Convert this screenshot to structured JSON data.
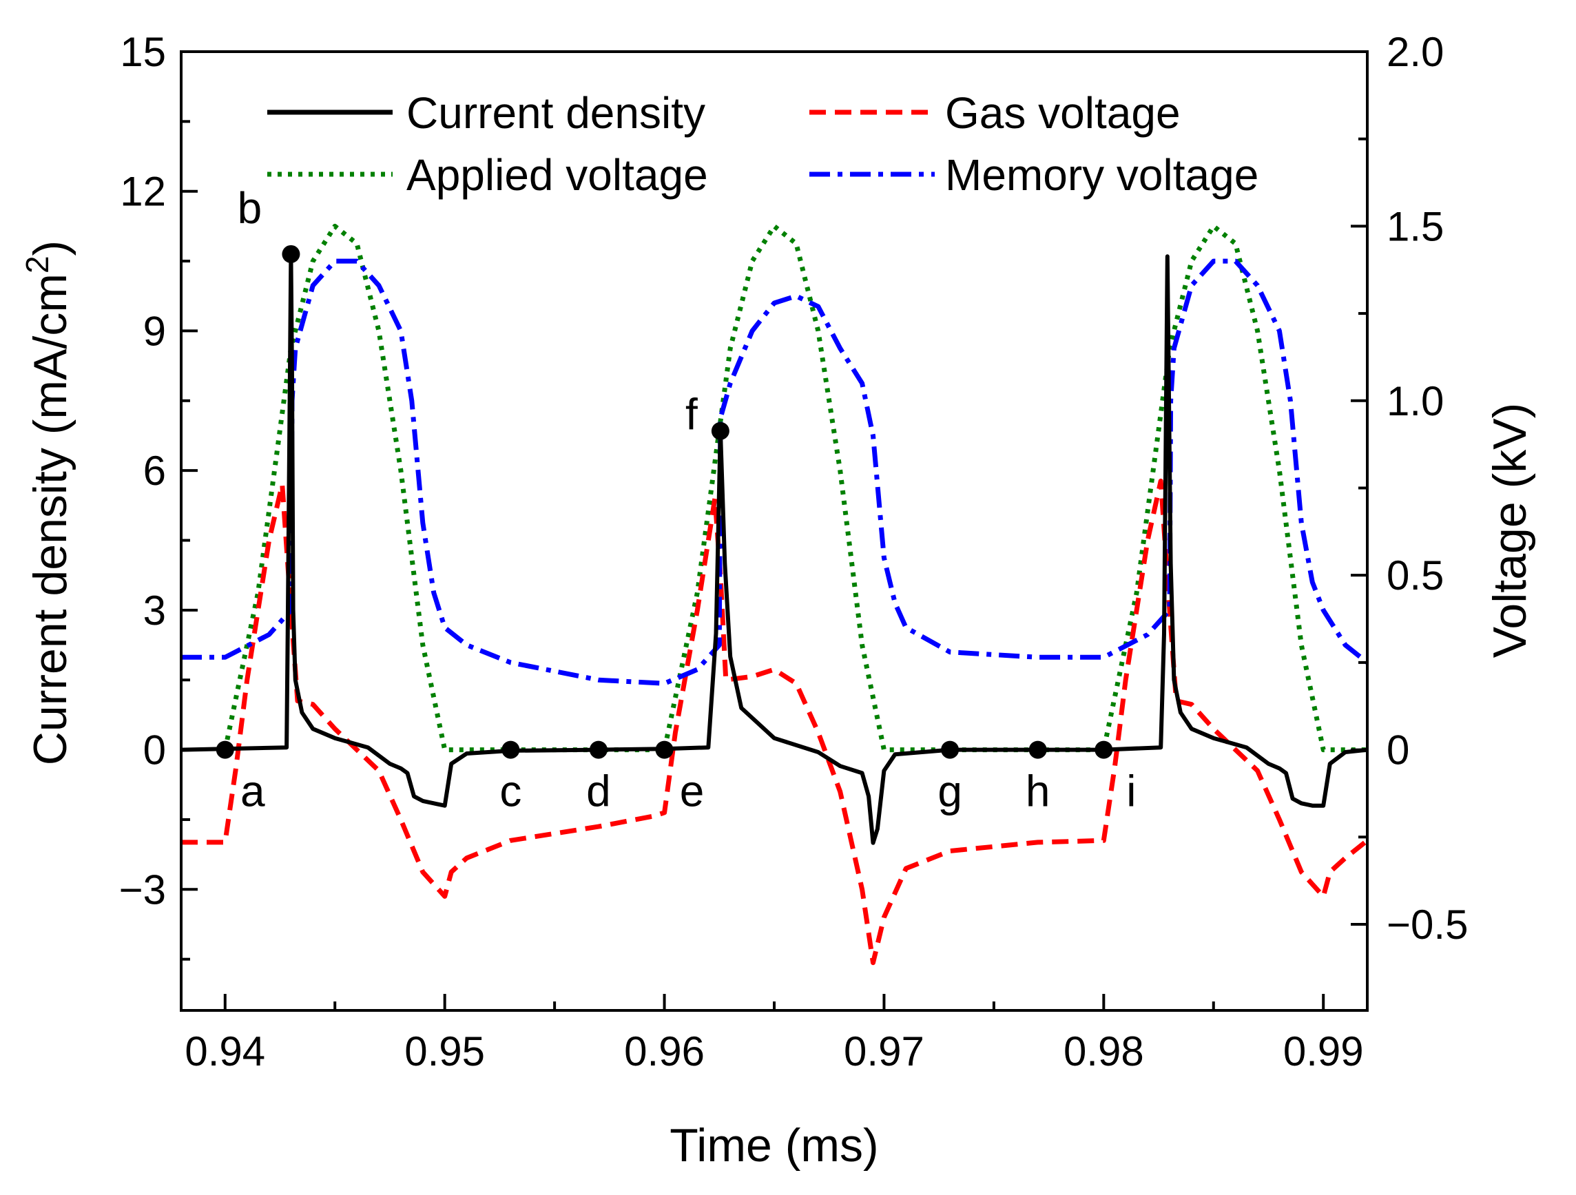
{
  "chart_data": {
    "type": "line",
    "xlabel": "Time (ms)",
    "ylabel_left_parts": [
      "Current density (mA/cm",
      "2",
      ")"
    ],
    "ylabel_right": "Voltage (kV)",
    "xlim": [
      0.938,
      0.992
    ],
    "ylim_left": [
      -5.6,
      15
    ],
    "ylim_right": [
      -0.7467,
      2.0
    ],
    "x_ticks": [
      "0.94",
      "0.95",
      "0.96",
      "0.97",
      "0.98",
      "0.99"
    ],
    "y_ticks_left": [
      "15",
      "12",
      "9",
      "6",
      "3",
      "0",
      "−3"
    ],
    "y_ticks_right": [
      "2.0",
      "1.5",
      "1.0",
      "0.5",
      "0",
      "−0.5"
    ],
    "grid": false,
    "legend_position": "top",
    "series": [
      {
        "name": "Current density",
        "axis": "left",
        "color": "#000000",
        "style": "solid",
        "points": [
          [
            0.938,
            0
          ],
          [
            0.9428,
            0.05
          ],
          [
            0.94285,
            2.5
          ],
          [
            0.94295,
            8
          ],
          [
            0.943,
            10.65
          ],
          [
            0.94305,
            8
          ],
          [
            0.9431,
            3
          ],
          [
            0.9432,
            1.5
          ],
          [
            0.9435,
            0.8
          ],
          [
            0.944,
            0.45
          ],
          [
            0.945,
            0.25
          ],
          [
            0.9465,
            0.05
          ],
          [
            0.9475,
            -0.3
          ],
          [
            0.948,
            -0.4
          ],
          [
            0.9483,
            -0.5
          ],
          [
            0.9486,
            -1.0
          ],
          [
            0.949,
            -1.1
          ],
          [
            0.9495,
            -1.15
          ],
          [
            0.95,
            -1.2
          ],
          [
            0.9503,
            -0.3
          ],
          [
            0.951,
            -0.08
          ],
          [
            0.953,
            -0.02
          ],
          [
            0.957,
            0
          ],
          [
            0.96,
            0.02
          ],
          [
            0.962,
            0.05
          ],
          [
            0.96235,
            2.5
          ],
          [
            0.96255,
            6.85
          ],
          [
            0.96275,
            4
          ],
          [
            0.963,
            2
          ],
          [
            0.9635,
            0.9
          ],
          [
            0.965,
            0.25
          ],
          [
            0.967,
            -0.05
          ],
          [
            0.968,
            -0.35
          ],
          [
            0.969,
            -0.5
          ],
          [
            0.9693,
            -1.0
          ],
          [
            0.9695,
            -2.0
          ],
          [
            0.9697,
            -1.7
          ],
          [
            0.97,
            -0.45
          ],
          [
            0.9705,
            -0.1
          ],
          [
            0.973,
            0
          ],
          [
            0.977,
            0
          ],
          [
            0.98,
            0
          ],
          [
            0.9826,
            0.05
          ],
          [
            0.98275,
            2.5
          ],
          [
            0.9829,
            10.6
          ],
          [
            0.98305,
            4
          ],
          [
            0.9832,
            1.5
          ],
          [
            0.9835,
            0.8
          ],
          [
            0.984,
            0.45
          ],
          [
            0.985,
            0.25
          ],
          [
            0.9865,
            0.05
          ],
          [
            0.9875,
            -0.3
          ],
          [
            0.988,
            -0.4
          ],
          [
            0.9883,
            -0.5
          ],
          [
            0.9886,
            -1.05
          ],
          [
            0.989,
            -1.15
          ],
          [
            0.9895,
            -1.2
          ],
          [
            0.99,
            -1.2
          ],
          [
            0.9903,
            -0.3
          ],
          [
            0.991,
            -0.05
          ],
          [
            0.992,
            0
          ]
        ]
      },
      {
        "name": "Gas voltage",
        "axis": "right",
        "color": "#ff0000",
        "style": "dashed",
        "points": [
          [
            0.938,
            -0.265
          ],
          [
            0.94,
            -0.265
          ],
          [
            0.9405,
            -0.05
          ],
          [
            0.941,
            0.2
          ],
          [
            0.942,
            0.6
          ],
          [
            0.9426,
            0.76
          ],
          [
            0.943,
            0.4
          ],
          [
            0.9433,
            0.14
          ],
          [
            0.944,
            0.13
          ],
          [
            0.945,
            0.06
          ],
          [
            0.947,
            -0.06
          ],
          [
            0.948,
            -0.2
          ],
          [
            0.949,
            -0.35
          ],
          [
            0.95,
            -0.42
          ],
          [
            0.9503,
            -0.35
          ],
          [
            0.951,
            -0.31
          ],
          [
            0.953,
            -0.26
          ],
          [
            0.957,
            -0.22
          ],
          [
            0.9595,
            -0.19
          ],
          [
            0.96,
            -0.18
          ],
          [
            0.9605,
            0.05
          ],
          [
            0.9615,
            0.4
          ],
          [
            0.9623,
            0.72
          ],
          [
            0.96255,
            0.5
          ],
          [
            0.9628,
            0.2
          ],
          [
            0.964,
            0.21
          ],
          [
            0.965,
            0.23
          ],
          [
            0.966,
            0.19
          ],
          [
            0.967,
            0.05
          ],
          [
            0.968,
            -0.12
          ],
          [
            0.969,
            -0.4
          ],
          [
            0.9695,
            -0.61
          ],
          [
            0.97,
            -0.48
          ],
          [
            0.971,
            -0.34
          ],
          [
            0.973,
            -0.29
          ],
          [
            0.977,
            -0.265
          ],
          [
            0.98,
            -0.26
          ],
          [
            0.9805,
            -0.05
          ],
          [
            0.981,
            0.2
          ],
          [
            0.982,
            0.6
          ],
          [
            0.9826,
            0.77
          ],
          [
            0.983,
            0.4
          ],
          [
            0.9833,
            0.14
          ],
          [
            0.984,
            0.13
          ],
          [
            0.985,
            0.06
          ],
          [
            0.987,
            -0.06
          ],
          [
            0.988,
            -0.2
          ],
          [
            0.989,
            -0.35
          ],
          [
            0.99,
            -0.42
          ],
          [
            0.9903,
            -0.35
          ],
          [
            0.991,
            -0.31
          ],
          [
            0.992,
            -0.26
          ]
        ]
      },
      {
        "name": "Applied voltage",
        "axis": "right",
        "color": "#008000",
        "style": "dotted",
        "points": [
          [
            0.94,
            0
          ],
          [
            0.9415,
            0.45
          ],
          [
            0.943,
            1.15
          ],
          [
            0.944,
            1.4
          ],
          [
            0.945,
            1.5
          ],
          [
            0.946,
            1.45
          ],
          [
            0.947,
            1.2
          ],
          [
            0.948,
            0.8
          ],
          [
            0.949,
            0.3
          ],
          [
            0.95,
            0
          ],
          [
            0.96,
            0
          ],
          [
            0.9615,
            0.45
          ],
          [
            0.963,
            1.15
          ],
          [
            0.964,
            1.4
          ],
          [
            0.965,
            1.5
          ],
          [
            0.966,
            1.45
          ],
          [
            0.967,
            1.2
          ],
          [
            0.968,
            0.8
          ],
          [
            0.969,
            0.3
          ],
          [
            0.97,
            0
          ],
          [
            0.98,
            0
          ],
          [
            0.9815,
            0.45
          ],
          [
            0.983,
            1.15
          ],
          [
            0.984,
            1.4
          ],
          [
            0.985,
            1.5
          ],
          [
            0.986,
            1.45
          ],
          [
            0.987,
            1.2
          ],
          [
            0.988,
            0.8
          ],
          [
            0.989,
            0.3
          ],
          [
            0.99,
            0
          ],
          [
            0.992,
            0
          ]
        ]
      },
      {
        "name": "Memory voltage",
        "axis": "right",
        "color": "#0000ff",
        "style": "dashdot",
        "points": [
          [
            0.938,
            0.265
          ],
          [
            0.94,
            0.265
          ],
          [
            0.942,
            0.33
          ],
          [
            0.943,
            0.4
          ],
          [
            0.94305,
            1.0
          ],
          [
            0.9432,
            1.15
          ],
          [
            0.944,
            1.33
          ],
          [
            0.945,
            1.4
          ],
          [
            0.946,
            1.4
          ],
          [
            0.947,
            1.33
          ],
          [
            0.948,
            1.2
          ],
          [
            0.9485,
            1.0
          ],
          [
            0.949,
            0.65
          ],
          [
            0.9495,
            0.45
          ],
          [
            0.95,
            0.35
          ],
          [
            0.951,
            0.3
          ],
          [
            0.953,
            0.25
          ],
          [
            0.957,
            0.2
          ],
          [
            0.96,
            0.19
          ],
          [
            0.9615,
            0.23
          ],
          [
            0.9625,
            0.3
          ],
          [
            0.96255,
            0.95
          ],
          [
            0.963,
            1.05
          ],
          [
            0.964,
            1.2
          ],
          [
            0.965,
            1.28
          ],
          [
            0.966,
            1.3
          ],
          [
            0.967,
            1.27
          ],
          [
            0.968,
            1.15
          ],
          [
            0.969,
            1.05
          ],
          [
            0.9695,
            0.9
          ],
          [
            0.97,
            0.55
          ],
          [
            0.9705,
            0.42
          ],
          [
            0.971,
            0.35
          ],
          [
            0.973,
            0.28
          ],
          [
            0.977,
            0.265
          ],
          [
            0.98,
            0.265
          ],
          [
            0.982,
            0.33
          ],
          [
            0.983,
            0.4
          ],
          [
            0.98305,
            1.0
          ],
          [
            0.9832,
            1.15
          ],
          [
            0.984,
            1.33
          ],
          [
            0.985,
            1.4
          ],
          [
            0.986,
            1.4
          ],
          [
            0.987,
            1.33
          ],
          [
            0.988,
            1.2
          ],
          [
            0.9885,
            1.0
          ],
          [
            0.989,
            0.65
          ],
          [
            0.9895,
            0.48
          ],
          [
            0.99,
            0.4
          ],
          [
            0.9905,
            0.35
          ],
          [
            0.991,
            0.3
          ],
          [
            0.992,
            0.25
          ]
        ]
      }
    ],
    "annotations": [
      {
        "label": "a",
        "x": 0.94,
        "y": 0,
        "label_pos": "below-right"
      },
      {
        "label": "b",
        "x": 0.943,
        "y": 10.65,
        "label_pos": "upper-left"
      },
      {
        "label": "c",
        "x": 0.953,
        "y": 0,
        "label_pos": "below"
      },
      {
        "label": "d",
        "x": 0.957,
        "y": 0,
        "label_pos": "below"
      },
      {
        "label": "e",
        "x": 0.96,
        "y": 0,
        "label_pos": "below-right"
      },
      {
        "label": "f",
        "x": 0.96255,
        "y": 6.85,
        "label_pos": "left"
      },
      {
        "label": "g",
        "x": 0.973,
        "y": 0,
        "label_pos": "below"
      },
      {
        "label": "h",
        "x": 0.977,
        "y": 0,
        "label_pos": "below"
      },
      {
        "label": "i",
        "x": 0.98,
        "y": 0,
        "label_pos": "below-right"
      }
    ]
  }
}
